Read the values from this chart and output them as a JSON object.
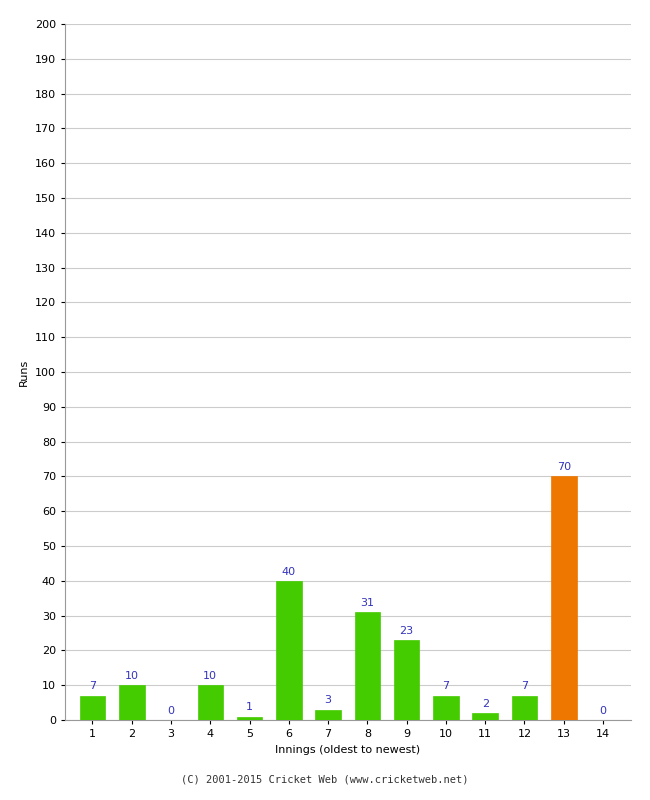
{
  "innings": [
    1,
    2,
    3,
    4,
    5,
    6,
    7,
    8,
    9,
    10,
    11,
    12,
    13,
    14
  ],
  "runs": [
    7,
    10,
    0,
    10,
    1,
    40,
    3,
    31,
    23,
    7,
    2,
    7,
    70,
    0
  ],
  "colors": [
    "#44cc00",
    "#44cc00",
    "#44cc00",
    "#44cc00",
    "#44cc00",
    "#44cc00",
    "#44cc00",
    "#44cc00",
    "#44cc00",
    "#44cc00",
    "#44cc00",
    "#44cc00",
    "#ee7700",
    "#44cc00"
  ],
  "ylim": [
    0,
    200
  ],
  "yticks": [
    0,
    10,
    20,
    30,
    40,
    50,
    60,
    70,
    80,
    90,
    100,
    110,
    120,
    130,
    140,
    150,
    160,
    170,
    180,
    190,
    200
  ],
  "xlabel": "Innings (oldest to newest)",
  "ylabel": "Runs",
  "label_color": "#3333bb",
  "label_fontsize": 8,
  "axis_label_fontsize": 8,
  "tick_fontsize": 8,
  "footer": "(C) 2001-2015 Cricket Web (www.cricketweb.net)",
  "background_color": "#ffffff",
  "grid_color": "#cccccc",
  "bar_width": 0.65
}
